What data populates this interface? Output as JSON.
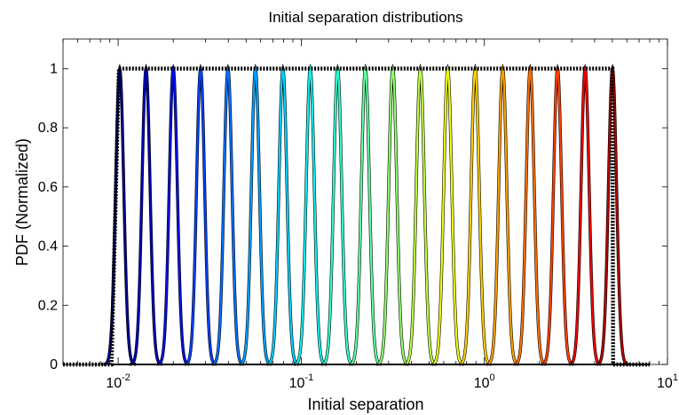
{
  "chart_data": {
    "type": "line",
    "title": "Initial separation distributions",
    "xlabel": "Initial separation",
    "ylabel": "PDF (Normalized)",
    "xscale": "log",
    "xlim": [
      0.005,
      10
    ],
    "ylim": [
      0,
      1.1
    ],
    "yticks": [
      0,
      0.2,
      0.4,
      0.6,
      0.8,
      1
    ],
    "ytick_labels": [
      "0",
      "0.2",
      "0.4",
      "0.6",
      "0.8",
      "1"
    ],
    "xticks": [
      {
        "value": 0.01,
        "base": "10",
        "exp": "-2"
      },
      {
        "value": 0.1,
        "base": "10",
        "exp": "-1"
      },
      {
        "value": 1,
        "base": "10",
        "exp": "0"
      },
      {
        "value": 10,
        "base": "10",
        "exp": "1"
      }
    ],
    "grid": false,
    "envelope": {
      "name": "uniform envelope",
      "color": "#000000",
      "style": "dotted",
      "points": [
        [
          0.005,
          0
        ],
        [
          0.0092,
          0
        ],
        [
          0.0101,
          1
        ],
        [
          5.0,
          1
        ],
        [
          5.05,
          0
        ],
        [
          8.0,
          0
        ]
      ]
    },
    "peaks": {
      "shape": "gaussian-in-log-x",
      "peak_value": 1,
      "width_decades": 0.022,
      "centers": [
        0.0102,
        0.0142,
        0.02,
        0.0282,
        0.0398,
        0.0562,
        0.0794,
        0.112,
        0.158,
        0.224,
        0.316,
        0.447,
        0.631,
        0.891,
        1.26,
        1.78,
        2.51,
        3.55,
        5.01
      ],
      "colors": [
        "#00008f",
        "#0000b8",
        "#0010e6",
        "#0040ff",
        "#0070ff",
        "#00a0ff",
        "#00d0ff",
        "#10f0f0",
        "#30ffd0",
        "#60ff9f",
        "#8fff70",
        "#bfff40",
        "#efff10",
        "#ffd000",
        "#ffa000",
        "#ff7000",
        "#ff4000",
        "#ef0000",
        "#b00000"
      ]
    }
  }
}
